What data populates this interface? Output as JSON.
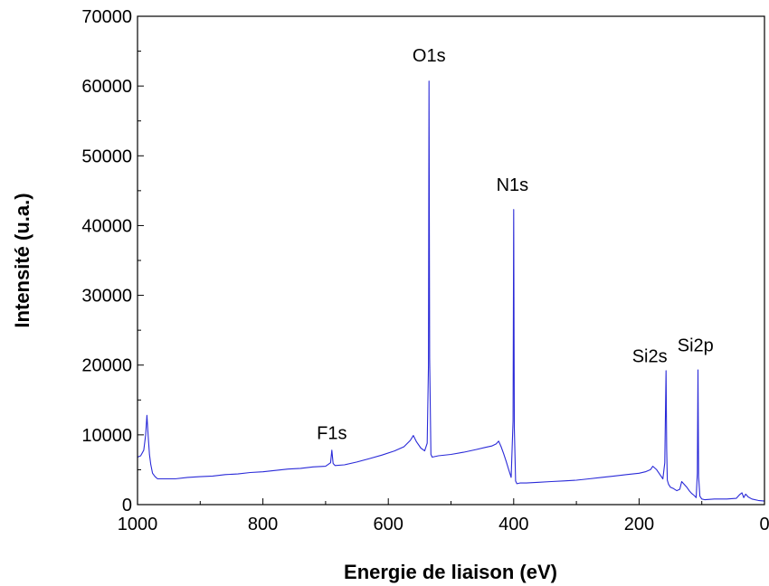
{
  "chart_data": {
    "type": "line",
    "title": "",
    "xlabel": "Energie de liaison (eV)",
    "ylabel": "Intensité (u.a.)",
    "xlim": [
      1000,
      0
    ],
    "ylim": [
      0,
      70000
    ],
    "x_reversed": true,
    "grid": false,
    "x_ticks": [
      1000,
      800,
      600,
      400,
      200,
      0
    ],
    "y_ticks": [
      0,
      10000,
      20000,
      30000,
      40000,
      50000,
      60000,
      70000
    ],
    "series": [
      {
        "color": "#2a2ad8",
        "x": [
          1000,
          995,
          990,
          987,
          985,
          983,
          981,
          979,
          976,
          972,
          968,
          960,
          940,
          920,
          900,
          880,
          860,
          840,
          820,
          800,
          780,
          760,
          740,
          720,
          700,
          692,
          690,
          688,
          685,
          670,
          650,
          630,
          610,
          590,
          575,
          565,
          560,
          555,
          548,
          542,
          538,
          536,
          535,
          534,
          532,
          530,
          520,
          500,
          480,
          460,
          445,
          435,
          428,
          424,
          420,
          416,
          412,
          408,
          404,
          401,
          400,
          399,
          397,
          395,
          390,
          380,
          360,
          340,
          320,
          300,
          280,
          260,
          240,
          220,
          200,
          190,
          182,
          178,
          172,
          166,
          162,
          159,
          157,
          156,
          155,
          153,
          150,
          145,
          140,
          135,
          132,
          128,
          124,
          120,
          116,
          112,
          109,
          107,
          106,
          105,
          103,
          100,
          95,
          80,
          60,
          45,
          40,
          36,
          33,
          30,
          26,
          20,
          10,
          0
        ],
        "y": [
          6800,
          7000,
          7800,
          10000,
          12800,
          9800,
          7200,
          5800,
          4500,
          4000,
          3700,
          3700,
          3700,
          3900,
          4000,
          4100,
          4300,
          4400,
          4600,
          4700,
          4900,
          5100,
          5200,
          5400,
          5500,
          6000,
          7800,
          5900,
          5600,
          5700,
          6100,
          6600,
          7100,
          7700,
          8300,
          9200,
          9900,
          9000,
          8100,
          7700,
          8800,
          20000,
          60700,
          21000,
          7200,
          6800,
          7000,
          7200,
          7500,
          7900,
          8200,
          8400,
          8700,
          9100,
          8300,
          7300,
          6200,
          5000,
          3900,
          12000,
          42300,
          11000,
          3400,
          3000,
          3100,
          3100,
          3200,
          3300,
          3400,
          3500,
          3700,
          3900,
          4100,
          4300,
          4500,
          4700,
          5000,
          5500,
          5000,
          4200,
          3700,
          6000,
          19200,
          8000,
          3500,
          2900,
          2500,
          2300,
          2000,
          2200,
          3300,
          2900,
          2500,
          2000,
          1600,
          1300,
          1000,
          4500,
          19300,
          4000,
          1200,
          800,
          700,
          800,
          800,
          900,
          1400,
          1700,
          1000,
          1500,
          1100,
          800,
          600,
          500
        ]
      }
    ],
    "annotations": [
      {
        "text": "O1s",
        "x": 535,
        "y": 63500
      },
      {
        "text": "N1s",
        "x": 402,
        "y": 45000
      },
      {
        "text": "F1s",
        "x": 690,
        "y": 9400
      },
      {
        "text": "Si2s",
        "x": 183,
        "y": 20400
      },
      {
        "text": "Si2p",
        "x": 110,
        "y": 22000
      }
    ]
  }
}
